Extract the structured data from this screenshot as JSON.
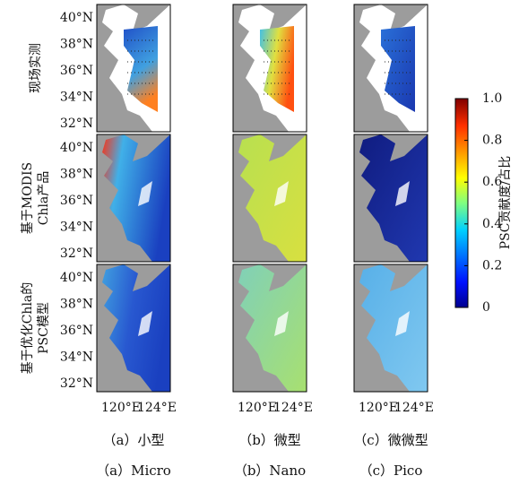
{
  "row_labels": [
    [
      "现场实测"
    ],
    [
      "基于MODIS",
      "Chla产品"
    ],
    [
      "基于优化Chla的",
      "PSC模型"
    ]
  ],
  "lat_labels": [
    "40°N",
    "38°N",
    "36°N",
    "34°N",
    "32°N"
  ],
  "lon_labels": [
    "120°E",
    "124°E"
  ],
  "captions_cn": [
    "（a）小型",
    "（b）微型",
    "（c）微微型"
  ],
  "captions_en": [
    "（a）Micro",
    "（b）Nano",
    "（c）Pico"
  ],
  "colorbar": {
    "label": "PSC贡献度/占比",
    "lim": [
      0,
      1
    ],
    "ticks": [
      0,
      0.2,
      0.4,
      0.6,
      0.8,
      {
        "value": 1,
        "label": "1.0"
      }
    ]
  }
}
